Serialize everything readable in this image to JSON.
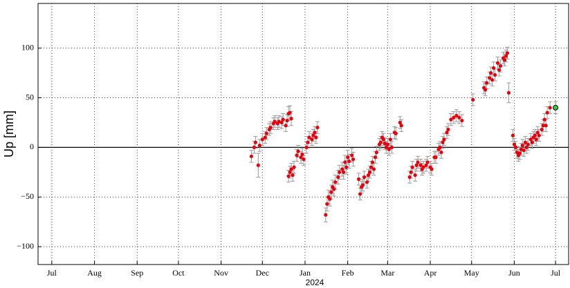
{
  "chart_data": {
    "type": "scatter",
    "y_label": "Up [mm]",
    "x_label": "2024",
    "xlim": [
      -194,
      191.5
    ],
    "ylim": [
      -118,
      145
    ],
    "xticks": [
      {
        "value": -184,
        "label": "Jul"
      },
      {
        "value": -153,
        "label": "Aug"
      },
      {
        "value": -122,
        "label": "Sep"
      },
      {
        "value": -92,
        "label": "Oct"
      },
      {
        "value": -61,
        "label": "Nov"
      },
      {
        "value": -31,
        "label": "Dec"
      },
      {
        "value": 0,
        "label": "Jan"
      },
      {
        "value": 31,
        "label": "Feb"
      },
      {
        "value": 60,
        "label": "Mar"
      },
      {
        "value": 91,
        "label": "Apr"
      },
      {
        "value": 121,
        "label": "May"
      },
      {
        "value": 152,
        "label": "Jun"
      },
      {
        "value": 182,
        "label": "Jul"
      }
    ],
    "yticks": [
      {
        "value": -100,
        "label": "−100"
      },
      {
        "value": -50,
        "label": "−50"
      },
      0,
      50,
      100
    ],
    "grid": true,
    "zero_line": true,
    "color": "#e8000b",
    "error_color": "#999999",
    "latest_color": "#2ecc40",
    "x": [
      -39,
      -37,
      -36,
      -34,
      -33,
      -31,
      -29,
      -28,
      -26,
      -25,
      -23,
      -22,
      -20,
      -19,
      -17,
      -16,
      -14,
      -13,
      -12,
      -11,
      -10,
      -12,
      -11,
      -10,
      -9,
      -8,
      -6,
      -5,
      -3,
      -2,
      -1,
      1,
      2,
      3,
      5,
      6,
      7,
      8,
      9,
      15,
      16,
      17,
      18,
      19,
      20,
      21,
      22,
      24,
      25,
      27,
      28,
      29,
      30,
      31,
      32,
      34,
      35,
      39,
      40,
      41,
      42,
      43,
      45,
      46,
      47,
      48,
      49,
      50,
      51,
      52,
      54,
      55,
      56,
      57,
      58,
      59,
      60,
      61,
      62,
      63,
      65,
      66,
      69,
      70,
      76,
      77,
      78,
      80,
      81,
      82,
      84,
      85,
      86,
      88,
      89,
      91,
      92,
      94,
      95,
      97,
      98,
      99,
      100,
      101,
      103,
      104,
      106,
      108,
      110,
      112,
      114,
      122,
      130,
      131,
      132,
      134,
      135,
      136,
      137,
      138,
      140,
      141,
      142,
      144,
      145,
      146,
      147,
      148,
      151,
      152,
      153,
      154,
      155,
      156,
      157,
      158,
      159,
      160,
      161,
      162,
      164,
      165,
      166,
      167,
      168,
      169,
      170,
      172,
      173,
      174,
      175,
      176,
      178,
      182
    ],
    "values": [
      -9,
      0,
      5,
      -18,
      2,
      8,
      10,
      14,
      18,
      20,
      24,
      26,
      24,
      26,
      25,
      28,
      22,
      27,
      34,
      35,
      29,
      -29,
      -25,
      -22,
      -28,
      -20,
      -8,
      -4,
      -10,
      -7,
      -12,
      0,
      5,
      10,
      8,
      12,
      15,
      10,
      20,
      -68,
      -57,
      -50,
      -52,
      -45,
      -40,
      -42,
      -35,
      -30,
      -25,
      -22,
      -25,
      -15,
      -20,
      -10,
      -14,
      -8,
      -12,
      -32,
      -47,
      -40,
      -38,
      -30,
      -35,
      -28,
      -25,
      -20,
      -15,
      -22,
      -10,
      -5,
      3,
      5,
      10,
      8,
      4,
      0,
      3,
      -2,
      8,
      0,
      15,
      14,
      25,
      22,
      -30,
      -25,
      -20,
      -28,
      -18,
      -15,
      -18,
      -22,
      -20,
      -18,
      -15,
      -20,
      -22,
      -10,
      -10,
      -2,
      0,
      -5,
      5,
      8,
      15,
      18,
      28,
      30,
      32,
      30,
      27,
      48,
      60,
      58,
      65,
      70,
      75,
      68,
      80,
      73,
      85,
      78,
      82,
      90,
      88,
      92,
      95,
      55,
      12,
      3,
      0,
      -5,
      -8,
      -6,
      -2,
      2,
      -3,
      5,
      0,
      3,
      8,
      5,
      10,
      12,
      8,
      15,
      12,
      18,
      22,
      28,
      22,
      35,
      40,
      40
    ],
    "errors": [
      6,
      6,
      6,
      12,
      6,
      6,
      6,
      6,
      6,
      6,
      6,
      6,
      6,
      6,
      6,
      6,
      6,
      6,
      7,
      7,
      7,
      6,
      6,
      6,
      6,
      6,
      6,
      6,
      6,
      6,
      6,
      6,
      6,
      6,
      6,
      6,
      6,
      6,
      6,
      7,
      7,
      7,
      7,
      7,
      7,
      7,
      7,
      7,
      7,
      7,
      7,
      7,
      7,
      7,
      7,
      7,
      7,
      6,
      6,
      6,
      6,
      6,
      6,
      6,
      6,
      6,
      6,
      6,
      6,
      6,
      6,
      6,
      6,
      6,
      6,
      6,
      6,
      6,
      6,
      6,
      6,
      6,
      6,
      6,
      6,
      6,
      6,
      6,
      6,
      6,
      6,
      6,
      6,
      6,
      6,
      6,
      6,
      6,
      6,
      6,
      6,
      6,
      6,
      6,
      6,
      6,
      6,
      6,
      6,
      6,
      6,
      6,
      6,
      6,
      6,
      6,
      6,
      6,
      6,
      6,
      6,
      6,
      6,
      6,
      6,
      6,
      6,
      10,
      6,
      6,
      6,
      6,
      6,
      6,
      6,
      6,
      6,
      6,
      6,
      6,
      6,
      6,
      6,
      6,
      6,
      6,
      6,
      6,
      6,
      6,
      6,
      6,
      6,
      6
    ]
  }
}
